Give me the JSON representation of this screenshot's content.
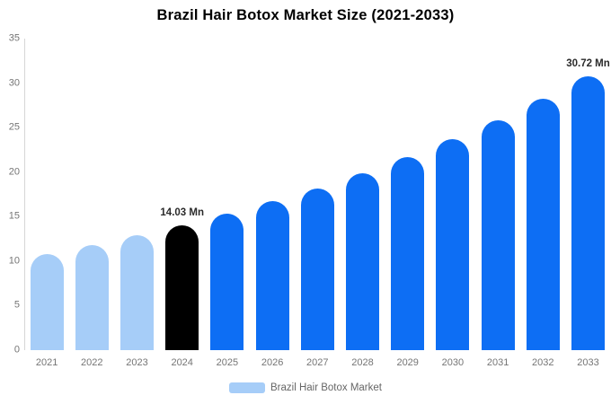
{
  "legend": {
    "label": "Brazil Hair Botox Market",
    "swatch_color": "#a6cdf8"
  },
  "chart_data": {
    "type": "bar",
    "title": "Brazil Hair Botox Market Size (2021-2033)",
    "xlabel": "",
    "ylabel": "",
    "categories": [
      "2021",
      "2022",
      "2023",
      "2024",
      "2025",
      "2026",
      "2027",
      "2028",
      "2029",
      "2030",
      "2031",
      "2032",
      "2033"
    ],
    "values": [
      10.8,
      11.8,
      12.9,
      14.03,
      15.3,
      16.7,
      18.2,
      19.9,
      21.7,
      23.7,
      25.8,
      28.2,
      30.72
    ],
    "unit": "Mn",
    "bar_colors": [
      "past",
      "past",
      "past",
      "current",
      "forecast",
      "forecast",
      "forecast",
      "forecast",
      "forecast",
      "forecast",
      "forecast",
      "forecast",
      "forecast"
    ],
    "colors": {
      "past": "#a6cdf8",
      "current": "#000000",
      "forecast": "#0d6ef4"
    },
    "annotations": [
      {
        "category": "2024",
        "text": "14.03 Mn"
      },
      {
        "category": "2033",
        "text": "30.72 Mn"
      }
    ],
    "ylim": [
      0,
      35
    ],
    "yticks": [
      0,
      5,
      10,
      15,
      20,
      25,
      30,
      35
    ],
    "grid": false,
    "legend_position": "bottom",
    "legend_entries": [
      "Brazil Hair Botox Market"
    ],
    "axis_line_color": "#d6d6d6",
    "tick_text_color": "#757575"
  }
}
